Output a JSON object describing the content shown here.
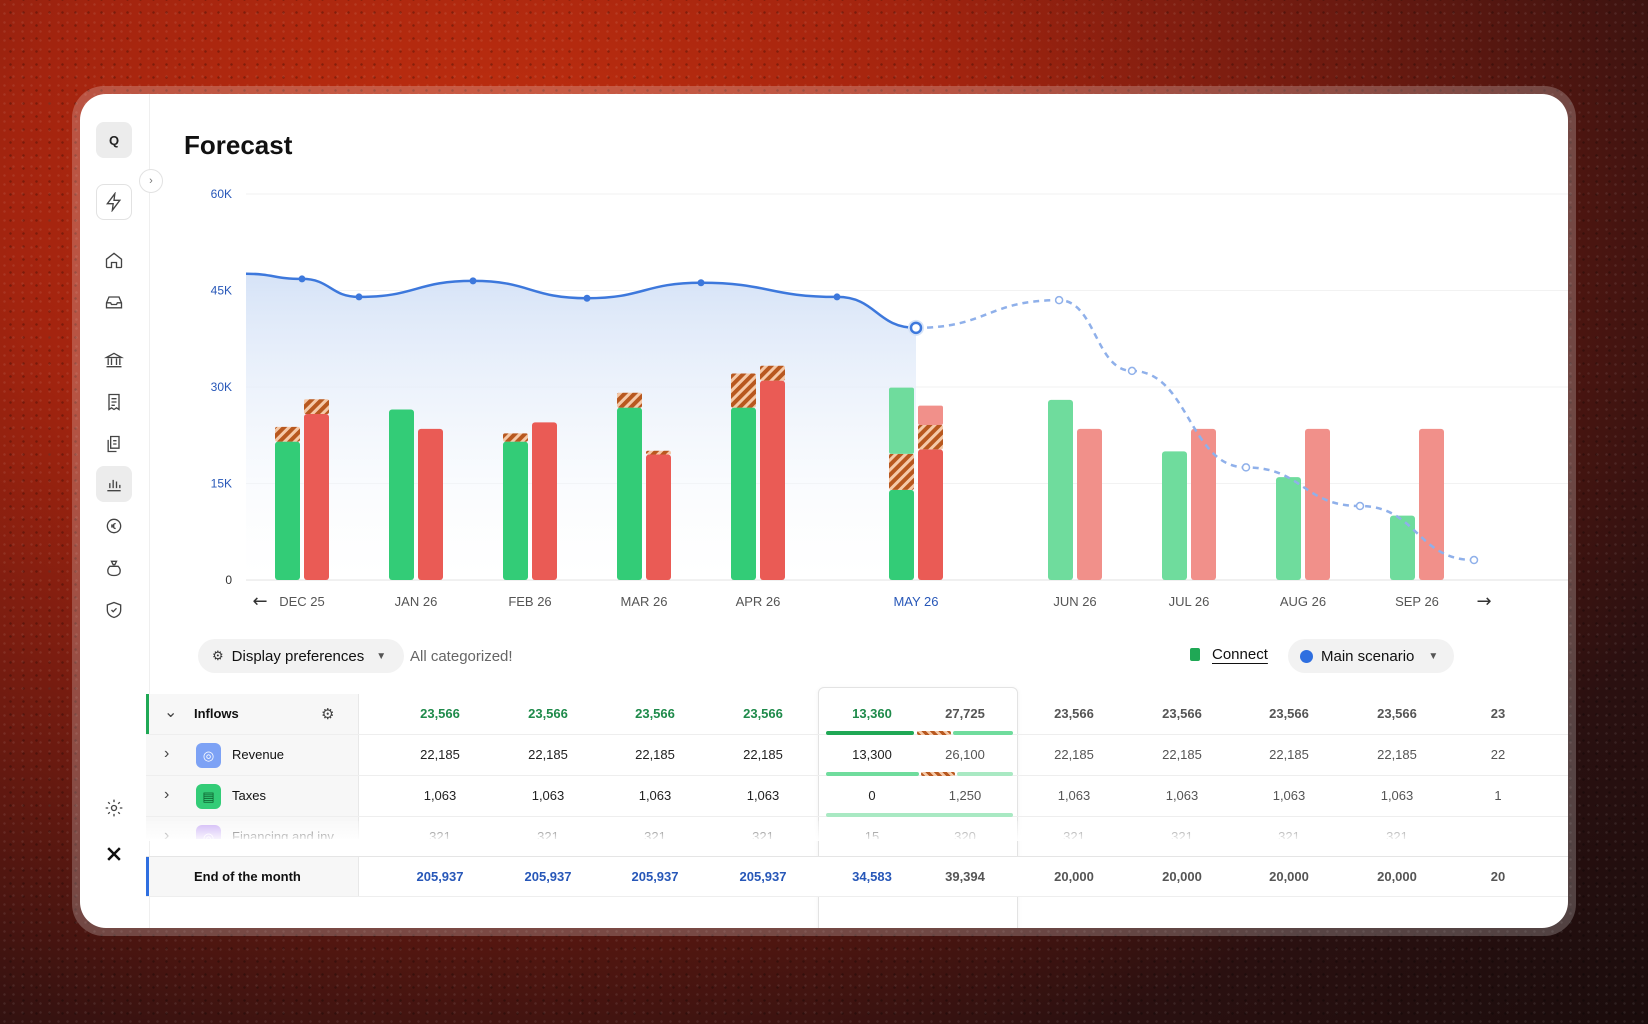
{
  "page": {
    "title": "Forecast"
  },
  "sidebar": {
    "workspace_initial": "Q",
    "items": [
      {
        "name": "bolt-icon"
      },
      {
        "name": "home-icon"
      },
      {
        "name": "inbox-icon"
      },
      {
        "name": "bank-icon"
      },
      {
        "name": "invoice-icon"
      },
      {
        "name": "documents-icon"
      },
      {
        "name": "chart-icon"
      },
      {
        "name": "currency-icon"
      },
      {
        "name": "money-bag-icon"
      },
      {
        "name": "shield-icon"
      },
      {
        "name": "settings-icon"
      },
      {
        "name": "logo-icon"
      }
    ],
    "active": "chart-icon"
  },
  "chart_data": {
    "type": "bar",
    "categories": [
      "DEC 25",
      "JAN 26",
      "FEB 26",
      "MAR 26",
      "APR 26",
      "MAY 26",
      "JUN 26",
      "JUL 26",
      "AUG 26",
      "SEP 26"
    ],
    "current_category": "MAY 26",
    "ylim": [
      0,
      60000
    ],
    "yticks": [
      "60K",
      "45K",
      "30K",
      "15K",
      "0"
    ],
    "ytick_values": [
      60000,
      45000,
      30000,
      15000,
      0
    ],
    "series": [
      {
        "kind": "inflow",
        "values": [
          21500,
          26500,
          21500,
          26800,
          26800,
          14000,
          28000,
          20000,
          16000,
          10000
        ],
        "pending": [
          2300,
          0,
          1300,
          2300,
          5300,
          5600,
          0,
          0,
          0,
          0
        ],
        "extra": [
          0,
          0,
          0,
          0,
          0,
          10300,
          0,
          0,
          0,
          0
        ]
      },
      {
        "kind": "outflow",
        "values": [
          25800,
          23500,
          24500,
          19500,
          31000,
          20300,
          23500,
          23500,
          23500,
          23500
        ],
        "pending": [
          2300,
          0,
          0,
          600,
          2300,
          3800,
          0,
          0,
          0,
          0
        ],
        "extra": [
          0,
          0,
          0,
          0,
          0,
          3000,
          0,
          0,
          0,
          0
        ]
      }
    ],
    "balance_actual": [
      {
        "x": -0.5,
        "y": 47600
      },
      {
        "x": 0,
        "y": 46800
      },
      {
        "x": 0.5,
        "y": 44000
      },
      {
        "x": 1.5,
        "y": 46500
      },
      {
        "x": 2.5,
        "y": 43800
      },
      {
        "x": 3.5,
        "y": 46200
      },
      {
        "x": 4.5,
        "y": 44000
      },
      {
        "x": 5,
        "y": 39200
      }
    ],
    "balance_forecast": [
      {
        "x": 5,
        "y": 39200
      },
      {
        "x": 5.9,
        "y": 43500
      },
      {
        "x": 6.5,
        "y": 32500
      },
      {
        "x": 7.5,
        "y": 17500
      },
      {
        "x": 8.5,
        "y": 11500
      },
      {
        "x": 9.5,
        "y": 3100
      }
    ],
    "colors": {
      "inflow": "#33cc77",
      "outflow": "#ea5b55",
      "inflow_forecast": "#6fdc9d",
      "outflow_forecast": "#f1908a",
      "pending": "#b8581f",
      "balance": "#3d78dc"
    }
  },
  "toolbar": {
    "display_preferences": "Display preferences",
    "status": "All categorized!",
    "connect": "Connect",
    "scenario": "Main scenario"
  },
  "table": {
    "rows": [
      {
        "label": "Inflows",
        "values": [
          "23,566",
          "23,566",
          "23,566",
          "23,566"
        ],
        "current": [
          "13,360",
          "27,725"
        ],
        "future": [
          "23,566",
          "23,566",
          "23,566",
          "23,566",
          "23"
        ]
      },
      {
        "label": "Revenue",
        "values": [
          "22,185",
          "22,185",
          "22,185",
          "22,185"
        ],
        "current": [
          "13,300",
          "26,100"
        ],
        "future": [
          "22,185",
          "22,185",
          "22,185",
          "22,185",
          "22"
        ]
      },
      {
        "label": "Taxes",
        "values": [
          "1,063",
          "1,063",
          "1,063",
          "1,063"
        ],
        "current": [
          "0",
          "1,250"
        ],
        "future": [
          "1,063",
          "1,063",
          "1,063",
          "1,063",
          "1"
        ]
      },
      {
        "label": "Financing and inv",
        "values": [
          "321",
          "321",
          "321",
          "321"
        ],
        "current": [
          "15",
          "320"
        ],
        "future": [
          "321",
          "321",
          "321",
          "321",
          ""
        ]
      },
      {
        "label": "End of the month",
        "values": [
          "205,937",
          "205,937",
          "205,937",
          "205,937"
        ],
        "current": [
          "34,583",
          "39,394"
        ],
        "future": [
          "20,000",
          "20,000",
          "20,000",
          "20,000",
          "20"
        ]
      }
    ]
  }
}
